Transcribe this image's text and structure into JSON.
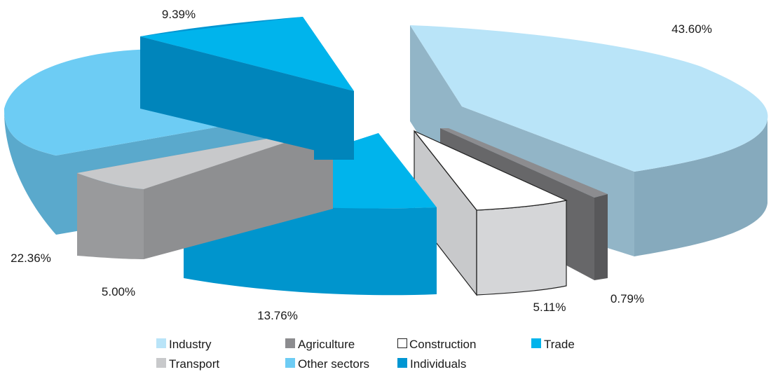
{
  "chart_data": {
    "type": "pie",
    "style": "3d-exploded",
    "title": "",
    "legend_placement": "bottom",
    "categories": [
      "Industry",
      "Agriculture",
      "Construction",
      "Trade",
      "Transport",
      "Other sectors",
      "Individuals"
    ],
    "values": [
      43.6,
      0.79,
      5.11,
      13.76,
      5.0,
      22.36,
      9.39
    ],
    "labels": [
      "43.60%",
      "0.79%",
      "5.11%",
      "13.76%",
      "5.00%",
      "22.36%",
      "9.39%"
    ],
    "colors": {
      "Industry": "#b9e4f8",
      "Agriculture": "#8c8c8f",
      "Construction": "#ffffff",
      "Trade": "#00b4ec",
      "Transport": "#c8c9cb",
      "Other sectors": "#6dccf4",
      "Individuals": "#0096d2"
    }
  }
}
